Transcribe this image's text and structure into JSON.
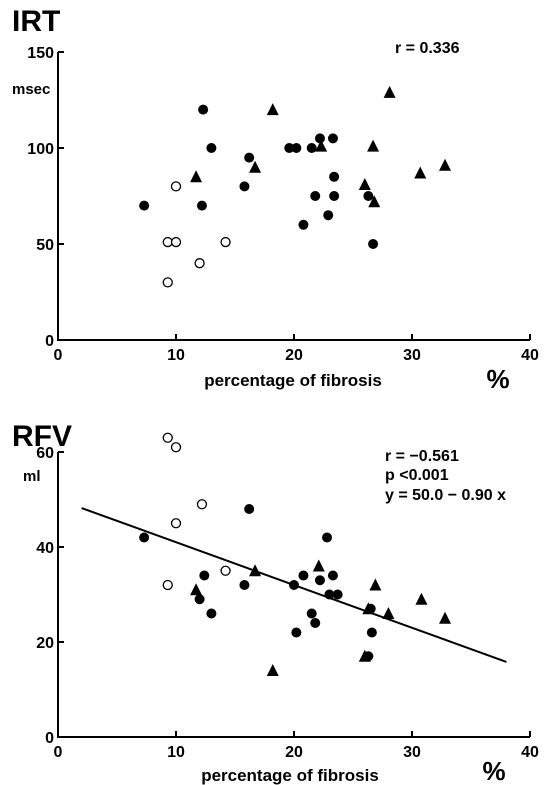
{
  "chart_data": [
    {
      "type": "scatter",
      "title": "IRT",
      "xlabel": "percentage of fibrosis",
      "x_unit": "%",
      "ylabel": "msec",
      "xlim": [
        0,
        40
      ],
      "ylim": [
        0,
        150
      ],
      "x_ticks": [
        "0",
        "10",
        "20",
        "30",
        "40"
      ],
      "y_ticks": [
        "0",
        "50",
        "100",
        "150"
      ],
      "annotations": [
        "r = 0.336"
      ],
      "grid": false,
      "series": [
        {
          "marker": "open-circle",
          "points": [
            [
              9.3,
              51
            ],
            [
              10.0,
              51
            ],
            [
              10.0,
              80
            ],
            [
              9.3,
              30
            ],
            [
              12.0,
              40
            ],
            [
              14.2,
              51
            ]
          ]
        },
        {
          "marker": "filled-circle",
          "points": [
            [
              7.3,
              70
            ],
            [
              12.2,
              70
            ],
            [
              12.3,
              120
            ],
            [
              13.0,
              100
            ],
            [
              15.8,
              80
            ],
            [
              16.2,
              95
            ],
            [
              19.6,
              100
            ],
            [
              20.2,
              100
            ],
            [
              21.5,
              100
            ],
            [
              22.2,
              105
            ],
            [
              23.3,
              105
            ],
            [
              23.4,
              85
            ],
            [
              23.4,
              75
            ],
            [
              21.8,
              75
            ],
            [
              20.8,
              60
            ],
            [
              22.9,
              65
            ],
            [
              26.3,
              75
            ],
            [
              26.7,
              50
            ]
          ]
        },
        {
          "marker": "filled-triangle",
          "points": [
            [
              11.7,
              85
            ],
            [
              16.7,
              90
            ],
            [
              18.2,
              120
            ],
            [
              22.3,
              101
            ],
            [
              26.0,
              81
            ],
            [
              26.7,
              101
            ],
            [
              26.8,
              72
            ],
            [
              28.1,
              129
            ],
            [
              30.7,
              87
            ],
            [
              32.8,
              91
            ]
          ]
        }
      ]
    },
    {
      "type": "scatter",
      "title": "RFV",
      "xlabel": "percentage of fibrosis",
      "x_unit": "%",
      "ylabel": "ml",
      "xlim": [
        0,
        40
      ],
      "ylim": [
        0,
        60
      ],
      "x_ticks": [
        "0",
        "10",
        "20",
        "30",
        "40"
      ],
      "y_ticks": [
        "0",
        "20",
        "40",
        "60"
      ],
      "annotations": [
        "r = −0.561",
        "p <0.001",
        "y = 50.0 − 0.90 x"
      ],
      "grid": false,
      "regression_line": {
        "intercept": 50.0,
        "slope": -0.9,
        "x_range": [
          2,
          38
        ]
      },
      "series": [
        {
          "marker": "open-circle",
          "points": [
            [
              9.3,
              63
            ],
            [
              10.0,
              61
            ],
            [
              10.0,
              45
            ],
            [
              12.2,
              49
            ],
            [
              9.3,
              32
            ],
            [
              14.2,
              35
            ]
          ]
        },
        {
          "marker": "filled-circle",
          "points": [
            [
              7.3,
              42
            ],
            [
              12.0,
              29
            ],
            [
              12.4,
              34
            ],
            [
              13.0,
              26
            ],
            [
              15.8,
              32
            ],
            [
              16.2,
              48
            ],
            [
              20.0,
              32
            ],
            [
              20.2,
              22
            ],
            [
              20.8,
              34
            ],
            [
              21.5,
              26
            ],
            [
              21.8,
              24
            ],
            [
              22.2,
              33
            ],
            [
              22.8,
              42
            ],
            [
              23.0,
              30
            ],
            [
              23.3,
              34
            ],
            [
              23.7,
              30
            ],
            [
              26.3,
              17
            ],
            [
              26.6,
              22
            ],
            [
              26.5,
              27
            ]
          ]
        },
        {
          "marker": "filled-triangle",
          "points": [
            [
              11.7,
              31
            ],
            [
              16.7,
              35
            ],
            [
              18.2,
              14
            ],
            [
              22.1,
              36
            ],
            [
              26.0,
              17
            ],
            [
              26.3,
              27
            ],
            [
              26.9,
              32
            ],
            [
              28.0,
              26
            ],
            [
              30.8,
              29
            ],
            [
              32.8,
              25
            ]
          ]
        }
      ]
    }
  ]
}
